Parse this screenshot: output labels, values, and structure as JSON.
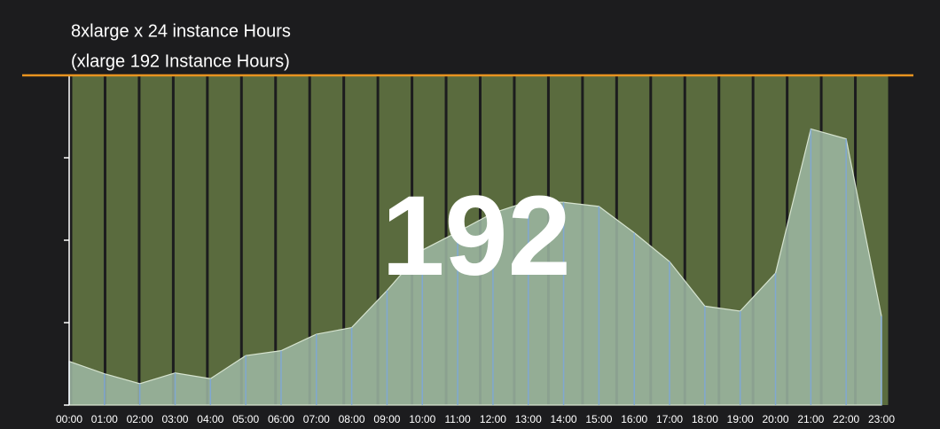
{
  "chart_data": {
    "type": "area",
    "title": "8xlarge x 24 instance Hours",
    "subtitle": "(xlarge 192 Instance Hours)",
    "annotation": "192",
    "categories": [
      "00:00",
      "01:00",
      "02:00",
      "03:00",
      "04:00",
      "05:00",
      "06:00",
      "07:00",
      "08:00",
      "09:00",
      "10:00",
      "11:00",
      "12:00",
      "13:00",
      "14:00",
      "15:00",
      "16:00",
      "17:00",
      "18:00",
      "19:00",
      "20:00",
      "21:00",
      "22:00",
      "23:00"
    ],
    "values": [
      0.53,
      0.38,
      0.26,
      0.39,
      0.32,
      0.6,
      0.66,
      0.86,
      0.94,
      1.39,
      1.88,
      2.1,
      2.33,
      2.47,
      2.46,
      2.41,
      2.09,
      1.74,
      1.2,
      1.14,
      1.6,
      3.35,
      3.23,
      1.08
    ],
    "capacity": [
      4,
      4,
      4,
      4,
      4,
      4,
      4,
      4,
      4,
      4,
      4,
      4,
      4,
      4,
      4,
      4,
      4,
      4,
      4,
      4,
      4,
      4,
      4,
      4
    ],
    "capacity_color": "#5a6b3e",
    "area_color": "#9fb8a4",
    "ylim": [
      0,
      4
    ],
    "yticks": [
      0,
      1,
      2,
      3,
      4
    ]
  }
}
